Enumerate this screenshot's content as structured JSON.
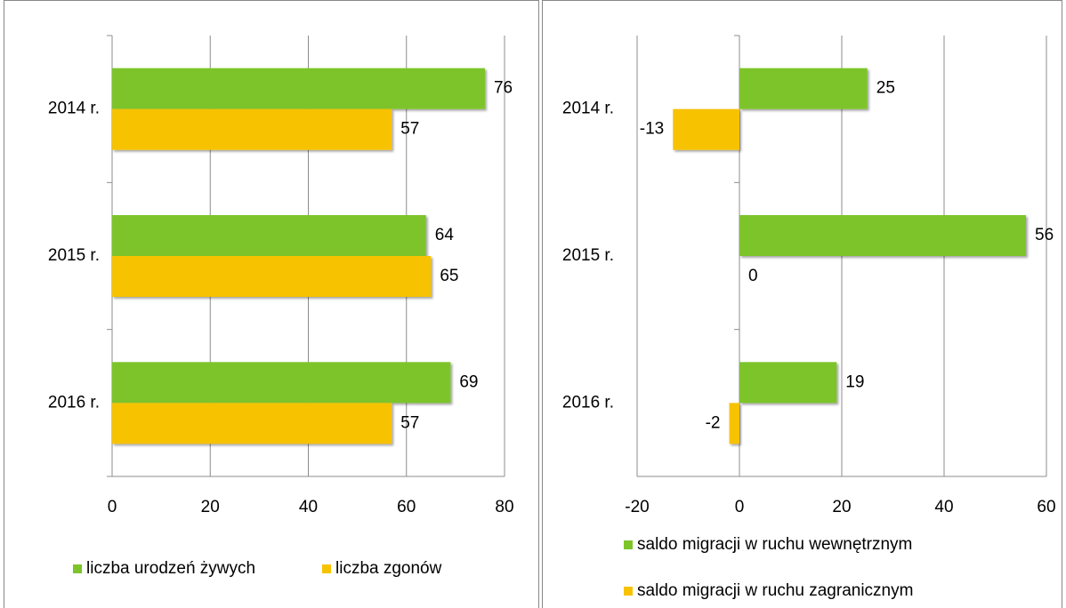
{
  "chart_data": [
    {
      "type": "bar",
      "orientation": "horizontal",
      "categories": [
        "2014 r.",
        "2015 r.",
        "2016 r."
      ],
      "series": [
        {
          "name": "liczba urodzeń żywych",
          "color": "#7dc42a",
          "values": [
            76,
            64,
            69
          ]
        },
        {
          "name": "liczba zgonów",
          "color": "#f7c200",
          "values": [
            57,
            65,
            57
          ]
        }
      ],
      "xlim": [
        0,
        80
      ],
      "xticks": [
        0,
        20,
        40,
        60,
        80
      ],
      "grid": true,
      "legend": "bottom"
    },
    {
      "type": "bar",
      "orientation": "horizontal",
      "categories": [
        "2014 r.",
        "2015 r.",
        "2016 r."
      ],
      "series": [
        {
          "name": "saldo migracji w ruchu wewnętrznym",
          "color": "#7dc42a",
          "values": [
            25,
            56,
            19
          ]
        },
        {
          "name": "saldo migracji w ruchu zagranicznym",
          "color": "#f7c200",
          "values": [
            -13,
            0,
            -2
          ]
        }
      ],
      "xlim": [
        -20,
        60
      ],
      "xticks": [
        -20,
        0,
        20,
        40,
        60
      ],
      "grid": true,
      "legend": "bottom"
    }
  ]
}
